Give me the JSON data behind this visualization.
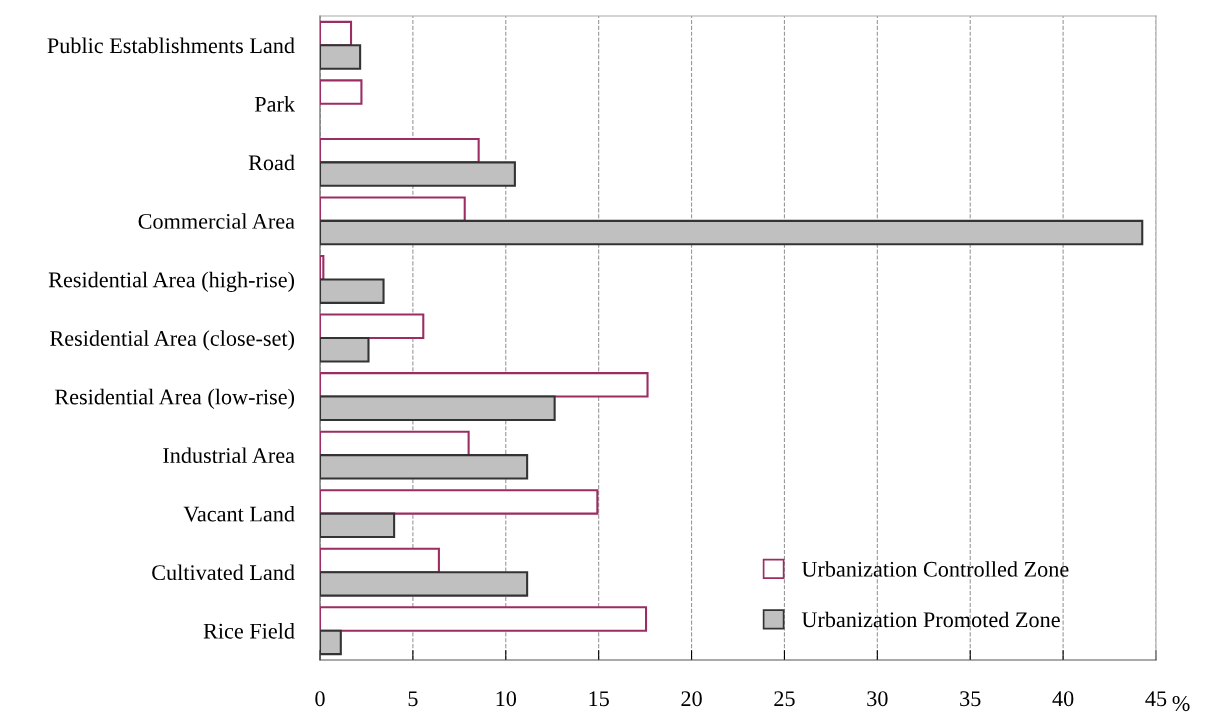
{
  "chart_data": {
    "type": "bar",
    "orientation": "horizontal",
    "xlabel": "%",
    "categories": [
      "Public Establishments Land",
      "Park",
      "Road",
      "Commercial Area",
      "Residential Area (high-rise)",
      "Residential Area (close-set)",
      "Residential Area (low-rise)",
      "Industrial Area",
      "Vacant Land",
      "Cultivated Land",
      "Rice Field"
    ],
    "series": [
      {
        "name": "Urbanization Controlled Zone",
        "color": "#9b2d63",
        "values": [
          1.67,
          2.23,
          8.54,
          7.79,
          0.18,
          5.56,
          17.63,
          8.0,
          14.93,
          6.4,
          17.55
        ]
      },
      {
        "name": "Urbanization Promoted Zone",
        "color": "#c0c0c0",
        "values": [
          2.16,
          null,
          10.49,
          44.26,
          3.42,
          2.61,
          12.63,
          11.15,
          3.99,
          11.15,
          1.12
        ]
      }
    ],
    "xlim": [
      0,
      45
    ],
    "xticks": [
      0,
      5,
      10,
      15,
      20,
      25,
      30,
      35,
      40,
      45
    ],
    "grid": "x",
    "legend": "bottom right"
  }
}
